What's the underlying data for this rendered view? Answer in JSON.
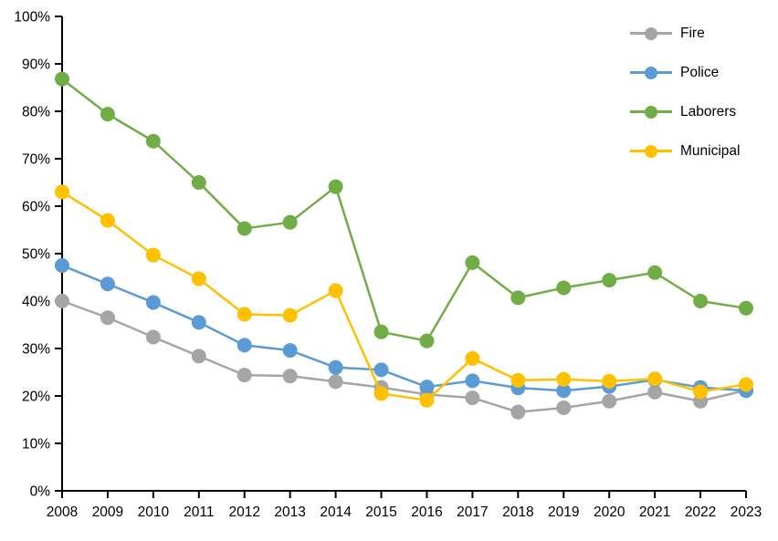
{
  "chart_data": {
    "type": "line",
    "title": "",
    "xlabel": "",
    "ylabel": "",
    "x": [
      2008,
      2009,
      2010,
      2011,
      2012,
      2013,
      2014,
      2015,
      2016,
      2017,
      2018,
      2019,
      2020,
      2021,
      2022,
      2023
    ],
    "series": [
      {
        "name": "Fire",
        "color": "#A5A5A5",
        "values": [
          40.0,
          36.5,
          32.4,
          28.4,
          24.4,
          24.2,
          23.0,
          21.8,
          20.3,
          19.6,
          16.6,
          17.5,
          18.9,
          20.8,
          18.9,
          21.2
        ]
      },
      {
        "name": "Police",
        "color": "#5B9BD5",
        "values": [
          47.5,
          43.6,
          39.7,
          35.5,
          30.7,
          29.6,
          26.0,
          25.5,
          21.9,
          23.2,
          21.7,
          21.1,
          22.0,
          23.4,
          21.8,
          21.1
        ]
      },
      {
        "name": "Laborers",
        "color": "#70AD47",
        "values": [
          86.8,
          79.4,
          73.7,
          65.0,
          55.3,
          56.6,
          64.1,
          33.5,
          31.6,
          48.1,
          40.7,
          42.8,
          44.4,
          46.0,
          40.0,
          38.5
        ]
      },
      {
        "name": "Municipal",
        "color": "#FFC000",
        "values": [
          63.0,
          57.0,
          49.7,
          44.7,
          37.2,
          37.0,
          42.2,
          20.5,
          19.1,
          27.9,
          23.3,
          23.5,
          23.1,
          23.6,
          20.9,
          22.4
        ]
      }
    ],
    "ylim": [
      0,
      100
    ],
    "y_tick_step": 10,
    "y_tick_labels": [
      "0%",
      "10%",
      "20%",
      "30%",
      "40%",
      "50%",
      "60%",
      "70%",
      "80%",
      "90%",
      "100%"
    ],
    "x_tick_labels": [
      "2008",
      "2009",
      "2010",
      "2011",
      "2012",
      "2013",
      "2014",
      "2015",
      "2016",
      "2017",
      "2018",
      "2019",
      "2020",
      "2021",
      "2022",
      "2023"
    ],
    "grid": false,
    "legend_position": "top-right",
    "axis_color": "#000000",
    "background": "#FFFFFF"
  }
}
